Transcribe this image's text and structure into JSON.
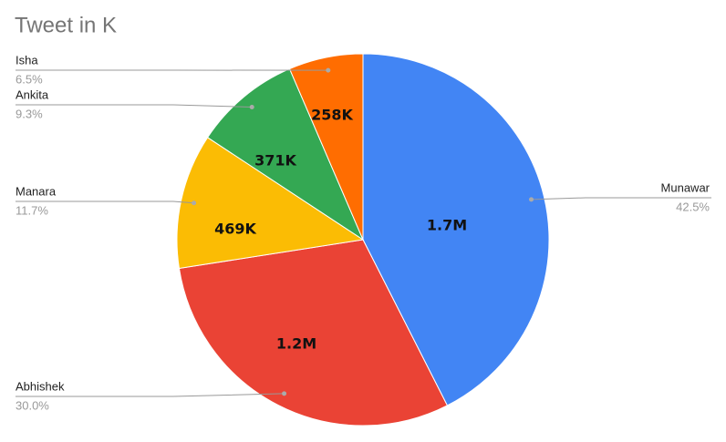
{
  "chart_data": {
    "type": "pie",
    "title": "Tweet in K",
    "categories": [
      "Munawar",
      "Abhishek",
      "Manara",
      "Ankita",
      "Isha"
    ],
    "values": [
      1700000,
      1200000,
      469000,
      371000,
      258000
    ],
    "value_labels": [
      "1.7M",
      "1.2M",
      "469K",
      "371K",
      "258K"
    ],
    "percent_labels": [
      "42.5%",
      "30.0%",
      "11.7%",
      "9.3%",
      "6.5%"
    ],
    "colors": [
      "#4285f4",
      "#ea4335",
      "#fbbc04",
      "#34a853",
      "#ff6d01"
    ]
  }
}
